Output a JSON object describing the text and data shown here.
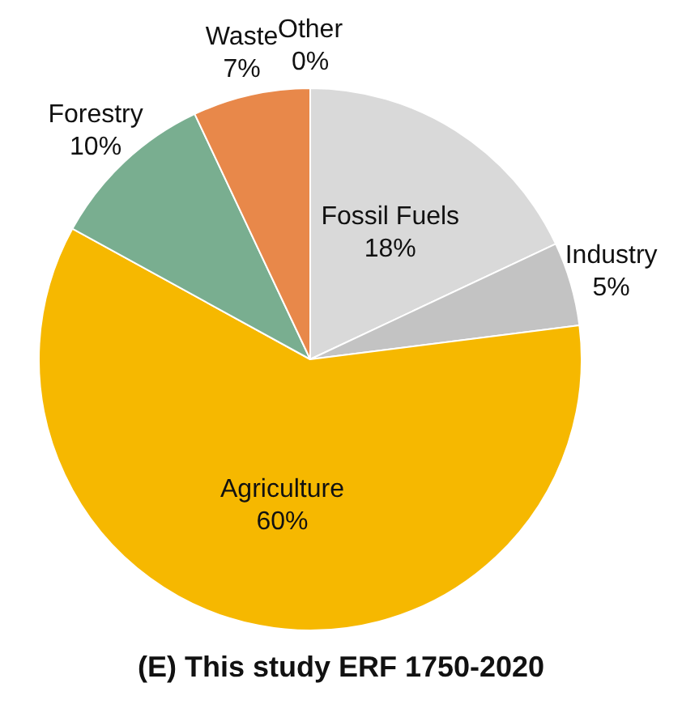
{
  "chart_data": {
    "type": "pie",
    "title": "(E) This study ERF 1750-2020",
    "categories": [
      "Fossil Fuels",
      "Industry",
      "Agriculture",
      "Forestry",
      "Waste",
      "Other"
    ],
    "values": [
      18,
      5,
      60,
      10,
      7,
      0
    ],
    "value_labels": [
      "18%",
      "5%",
      "60%",
      "10%",
      "7%",
      "0%"
    ],
    "colors": [
      "#d9d9d9",
      "#c3c3c3",
      "#f6b800",
      "#79ae90",
      "#e8884a",
      "#555555"
    ],
    "legend": false
  }
}
